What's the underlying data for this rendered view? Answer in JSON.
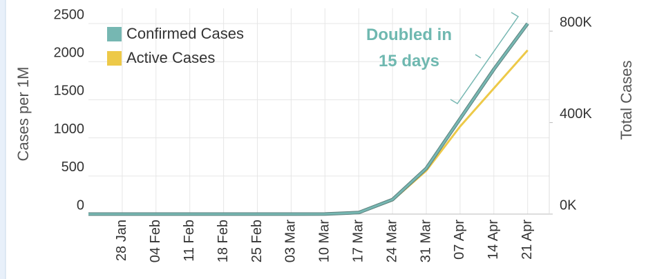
{
  "chart_data": {
    "type": "line",
    "y_label": "Cases per 1M",
    "y2_label": "Total Cases",
    "annotation": "Doubled in 15 days",
    "categories": [
      null,
      "28 Jan",
      "04 Feb",
      "11 Feb",
      "18 Feb",
      "25 Feb",
      "03 Mar",
      "10 Mar",
      "17 Mar",
      "24 Mar",
      "31 Mar",
      "07 Apr",
      "14 Apr",
      "21 Apr"
    ],
    "series": [
      {
        "name": "Confirmed Cases",
        "color": "#76b7b2",
        "values": [
          0,
          0,
          0,
          0,
          0,
          0,
          0,
          1,
          20,
          190,
          600,
          1250,
          1900,
          2500
        ]
      },
      {
        "name": "Active Cases",
        "color": "#edc948",
        "values": [
          0,
          0,
          0,
          0,
          0,
          0,
          0,
          1,
          18,
          180,
          570,
          1150,
          1650,
          2150
        ]
      }
    ],
    "ylim": [
      0,
      2700
    ],
    "yticks": [
      0,
      500,
      1000,
      1500,
      2000,
      2500
    ],
    "y2lim": [
      0,
      900000
    ],
    "y2ticks": [
      {
        "value": 0,
        "label": "0K"
      },
      {
        "value": 400000,
        "label": "400K"
      },
      {
        "value": 800000,
        "label": "800K"
      }
    ],
    "grid": true,
    "legend": "upper left"
  }
}
